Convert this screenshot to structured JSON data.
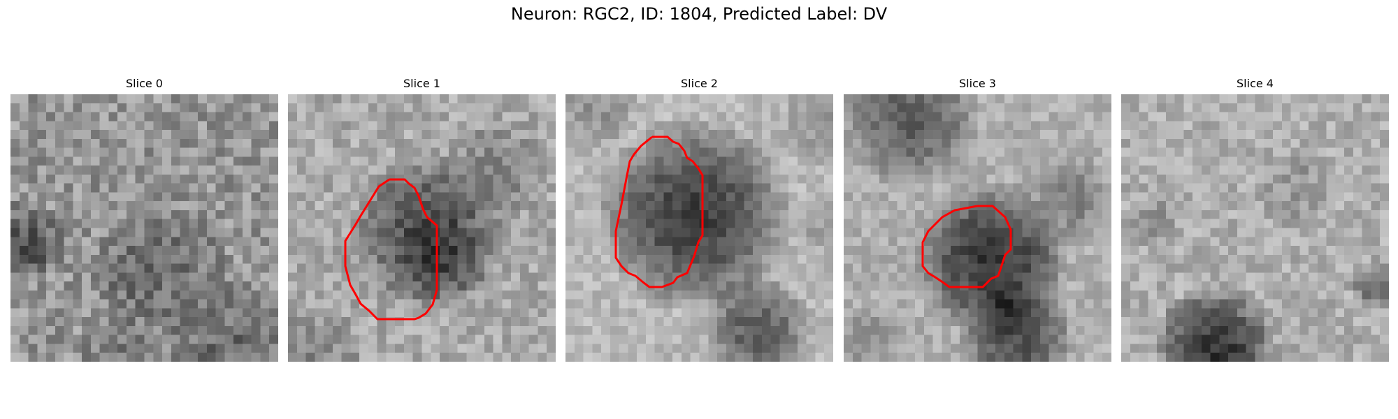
{
  "figure": {
    "title": "Neuron: RGC2, ID: 1804, Predicted Label: DV",
    "contour_color": "#ff0000"
  },
  "panels": [
    {
      "title": "Slice 0"
    },
    {
      "title": "Slice 1"
    },
    {
      "title": "Slice 2"
    },
    {
      "title": "Slice 3"
    },
    {
      "title": "Slice 4"
    }
  ]
}
